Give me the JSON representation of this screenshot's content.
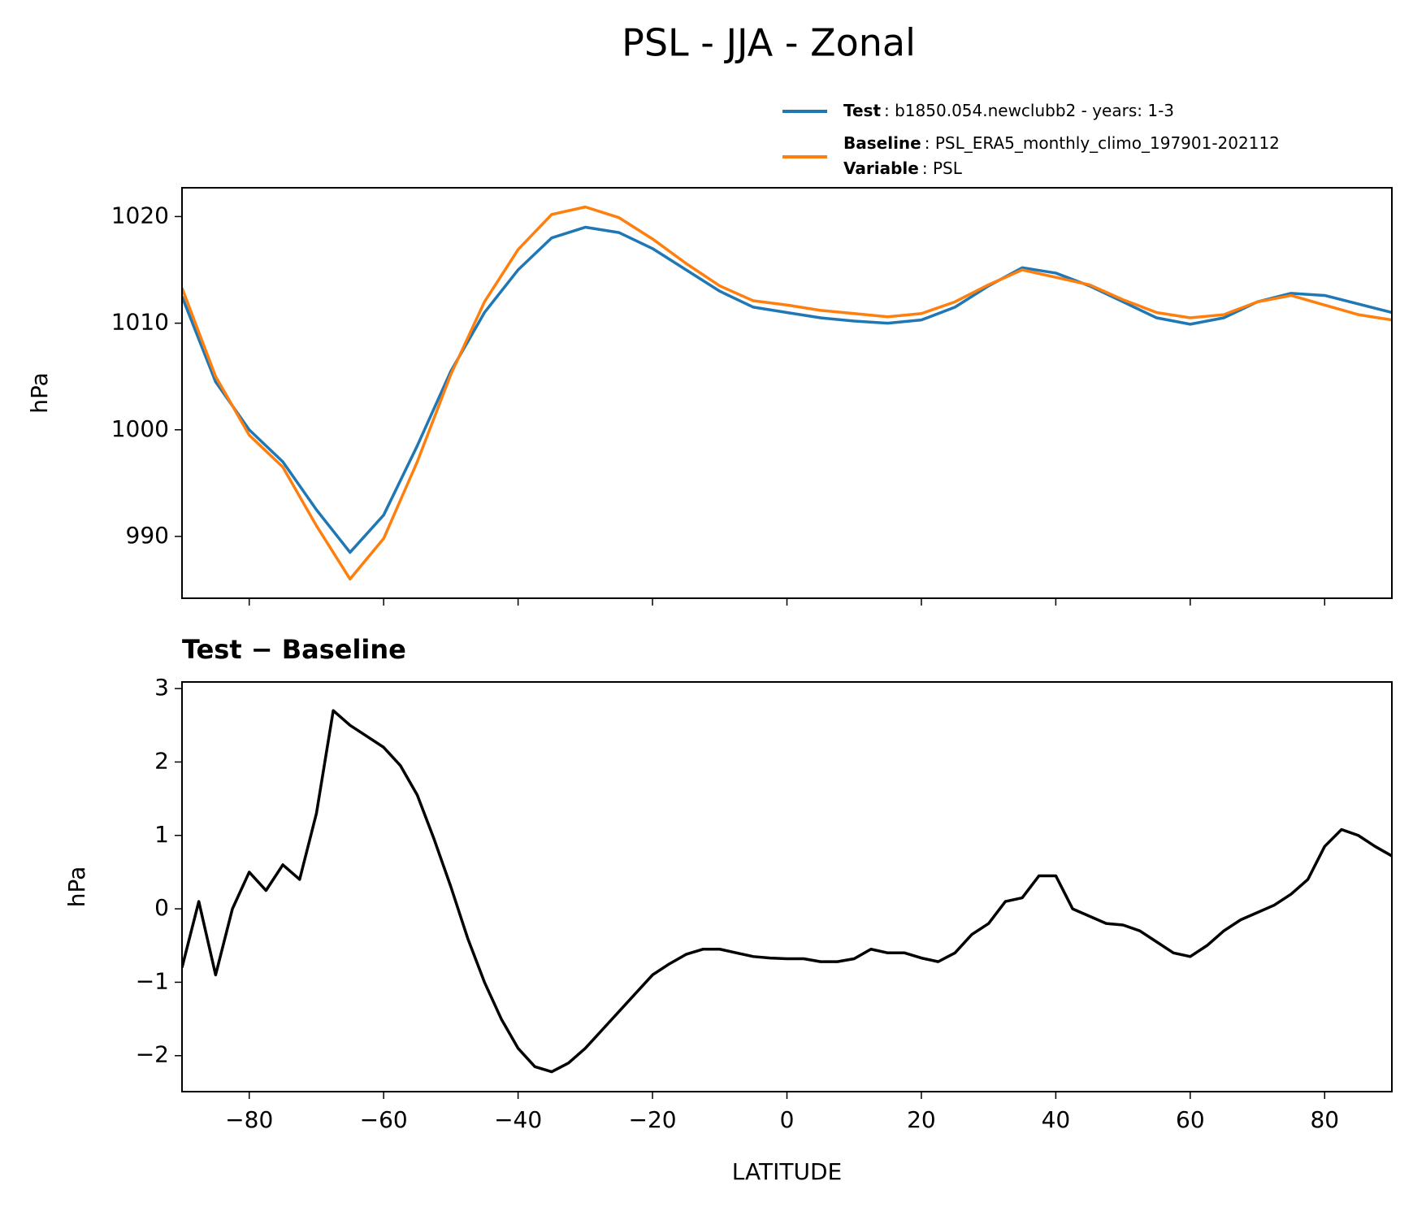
{
  "chart_data": [
    {
      "type": "line",
      "title": "PSL - JJA - Zonal",
      "ylabel": "hPa",
      "x": [
        -90,
        -85,
        -80,
        -75,
        -70,
        -65,
        -60,
        -55,
        -50,
        -45,
        -40,
        -35,
        -30,
        -25,
        -20,
        -15,
        -10,
        -5,
        0,
        5,
        10,
        15,
        20,
        25,
        30,
        35,
        40,
        45,
        50,
        55,
        60,
        65,
        70,
        75,
        80,
        85,
        90
      ],
      "series": [
        {
          "name": "Test",
          "detail": ": b1850.054.newclubb2 - years: 1-3",
          "color": "#1f77b4",
          "values": [
            1012.5,
            1004.5,
            1000,
            997,
            992.5,
            988.5,
            992,
            998.5,
            1005.5,
            1011,
            1015,
            1018,
            1019,
            1018.5,
            1017,
            1015,
            1013,
            1011.5,
            1011,
            1010.5,
            1010.2,
            1010,
            1010.3,
            1011.5,
            1013.5,
            1015.2,
            1014.7,
            1013.5,
            1012,
            1010.5,
            1009.9,
            1010.5,
            1012,
            1012.8,
            1012.6,
            1011.8,
            1011
          ]
        },
        {
          "name": "Baseline",
          "detail": ": PSL_ERA5_monthly_climo_197901-202112",
          "color": "#ff7f0e",
          "values": [
            1013.3,
            1005,
            999.5,
            996.5,
            991,
            986,
            989.8,
            997,
            1005.2,
            1012,
            1016.9,
            1020.2,
            1020.9,
            1019.9,
            1017.9,
            1015.6,
            1013.5,
            1012.1,
            1011.7,
            1011.2,
            1010.9,
            1010.6,
            1010.9,
            1012,
            1013.6,
            1015,
            1014.3,
            1013.6,
            1012.2,
            1011,
            1010.5,
            1010.8,
            1012,
            1012.6,
            1011.7,
            1010.8,
            1010.3
          ]
        }
      ],
      "variable_name": "Variable",
      "variable_value": ": PSL",
      "xlim": [
        -90,
        90
      ],
      "xticks": [
        -80,
        -60,
        -40,
        -20,
        0,
        20,
        40,
        60,
        80
      ],
      "ylim": [
        984.2,
        1022.7
      ],
      "yticks": [
        990,
        1000,
        1010,
        1020
      ]
    },
    {
      "type": "line",
      "title": "Test − Baseline",
      "ylabel": "hPa",
      "xlabel": "LATITUDE",
      "x": [
        -90,
        -87.5,
        -85,
        -82.5,
        -80,
        -77.5,
        -75,
        -72.5,
        -70,
        -67.5,
        -65,
        -62.5,
        -60,
        -57.5,
        -55,
        -52.5,
        -50,
        -47.5,
        -45,
        -42.5,
        -40,
        -37.5,
        -35,
        -32.5,
        -30,
        -27.5,
        -25,
        -22.5,
        -20,
        -17.5,
        -15,
        -12.5,
        -10,
        -7.5,
        -5,
        -2.5,
        0,
        2.5,
        5,
        7.5,
        10,
        12.5,
        15,
        17.5,
        20,
        22.5,
        25,
        27.5,
        30,
        32.5,
        35,
        37.5,
        40,
        42.5,
        45,
        47.5,
        50,
        52.5,
        55,
        57.5,
        60,
        62.5,
        65,
        67.5,
        70,
        72.5,
        75,
        77.5,
        80,
        82.5,
        85,
        87.5,
        90
      ],
      "series": [
        {
          "name": "Test − Baseline",
          "color": "#000000",
          "values": [
            -0.8,
            0.1,
            -0.9,
            0.0,
            0.5,
            0.25,
            0.6,
            0.4,
            1.3,
            2.7,
            2.5,
            2.35,
            2.2,
            1.95,
            1.55,
            0.95,
            0.3,
            -0.4,
            -1.0,
            -1.5,
            -1.9,
            -2.15,
            -2.22,
            -2.1,
            -1.9,
            -1.65,
            -1.4,
            -1.15,
            -0.9,
            -0.75,
            -0.62,
            -0.55,
            -0.55,
            -0.6,
            -0.65,
            -0.67,
            -0.68,
            -0.68,
            -0.72,
            -0.72,
            -0.68,
            -0.55,
            -0.6,
            -0.6,
            -0.67,
            -0.72,
            -0.6,
            -0.35,
            -0.2,
            0.1,
            0.15,
            0.45,
            0.45,
            0.0,
            -0.1,
            -0.2,
            -0.22,
            -0.3,
            -0.45,
            -0.6,
            -0.65,
            -0.5,
            -0.3,
            -0.15,
            -0.05,
            0.05,
            0.2,
            0.4,
            0.85,
            1.08,
            1.0,
            0.85,
            0.72
          ]
        }
      ],
      "xlim": [
        -90,
        90
      ],
      "xticks": [
        {
          "value": -80,
          "label": "−80"
        },
        {
          "value": -60,
          "label": "−60"
        },
        {
          "value": -40,
          "label": "−40"
        },
        {
          "value": -20,
          "label": "−20"
        },
        0,
        20,
        40,
        60,
        80
      ],
      "ylim": [
        -2.49,
        3.09
      ],
      "yticks": [
        {
          "value": -2,
          "label": "−2"
        },
        {
          "value": -1,
          "label": "−1"
        },
        0,
        1,
        2,
        3
      ]
    }
  ]
}
